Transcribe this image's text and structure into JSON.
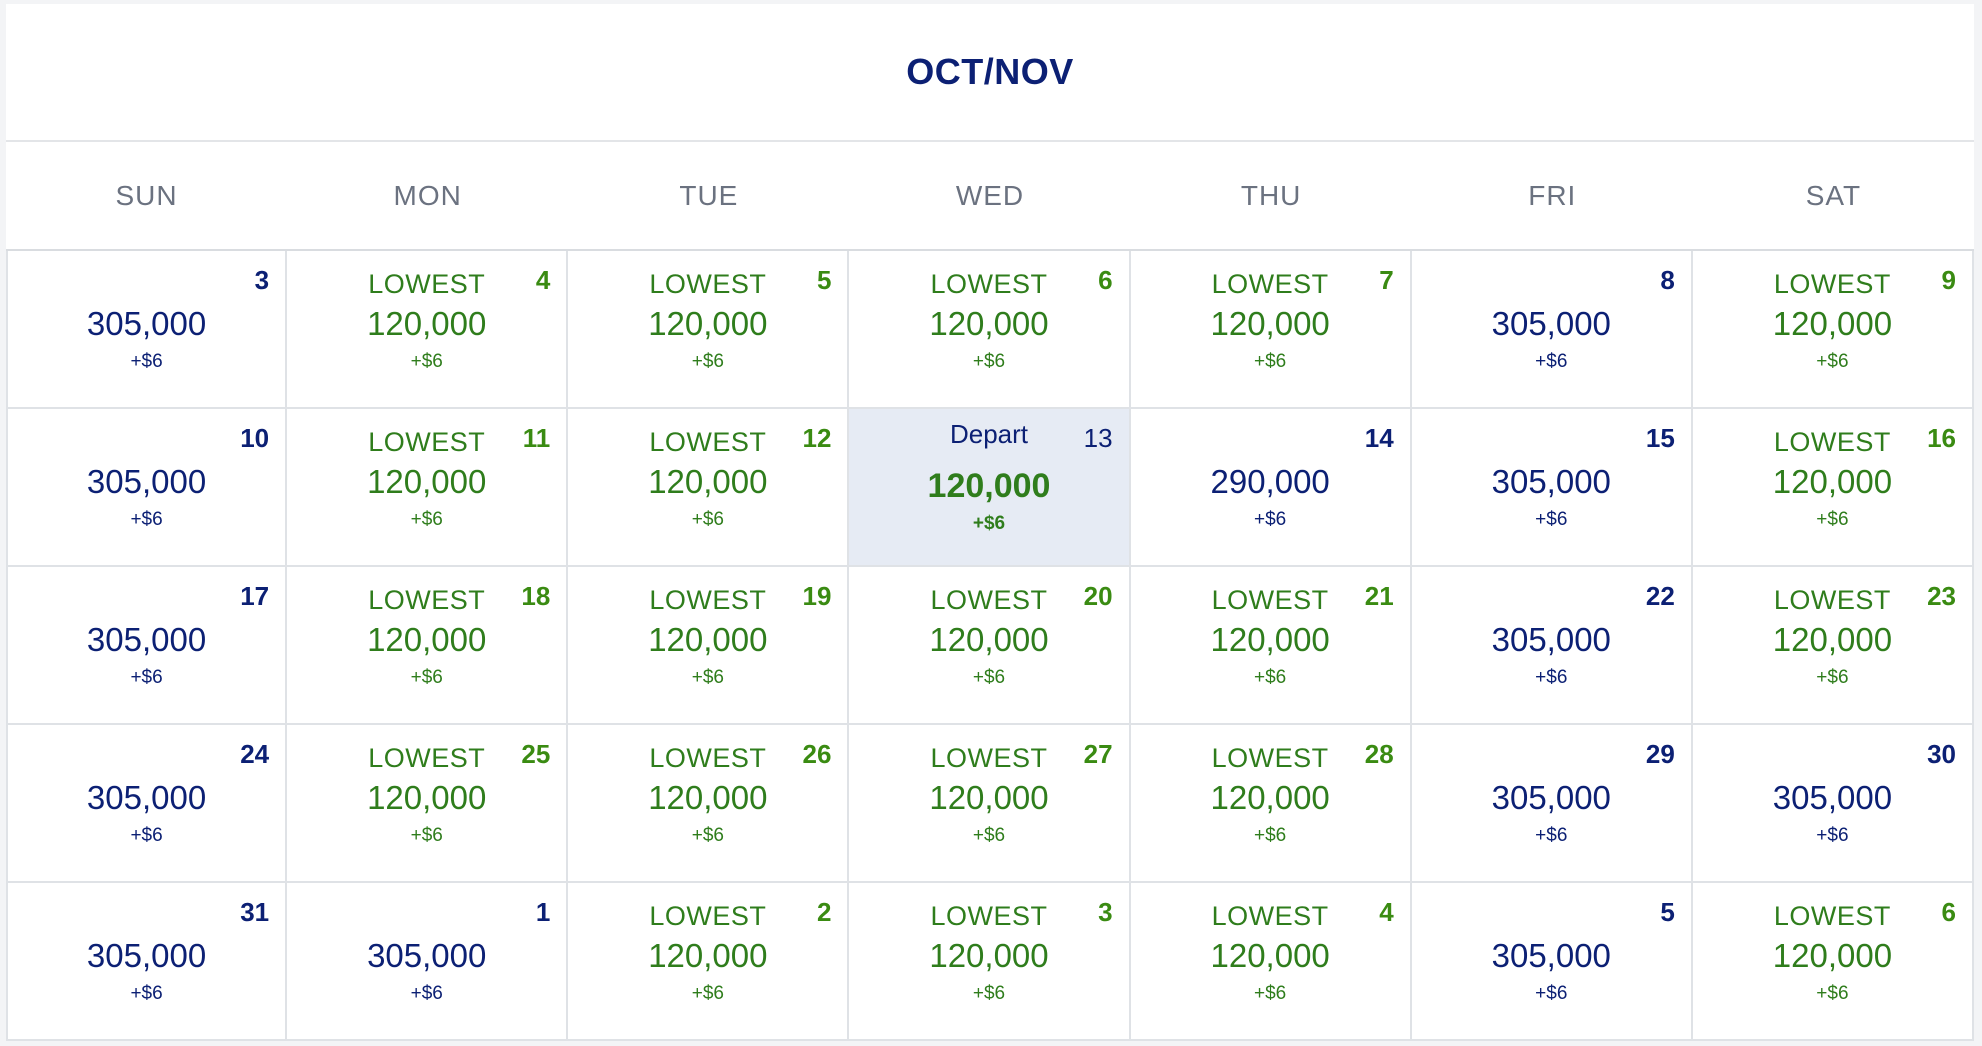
{
  "calendar": {
    "title": "OCT/NOV",
    "weekdays": [
      "SUN",
      "MON",
      "TUE",
      "WED",
      "THU",
      "FRI",
      "SAT"
    ],
    "colors": {
      "navy": "#0c2074",
      "green": "#2f7d1c",
      "selected_bg": "#e6ebf4"
    },
    "days": [
      {
        "day": "3",
        "tag": "",
        "price": "305,000",
        "fee": "+$6",
        "low": false
      },
      {
        "day": "4",
        "tag": "LOWEST",
        "price": "120,000",
        "fee": "+$6",
        "low": true
      },
      {
        "day": "5",
        "tag": "LOWEST",
        "price": "120,000",
        "fee": "+$6",
        "low": true
      },
      {
        "day": "6",
        "tag": "LOWEST",
        "price": "120,000",
        "fee": "+$6",
        "low": true
      },
      {
        "day": "7",
        "tag": "LOWEST",
        "price": "120,000",
        "fee": "+$6",
        "low": true
      },
      {
        "day": "8",
        "tag": "",
        "price": "305,000",
        "fee": "+$6",
        "low": false
      },
      {
        "day": "9",
        "tag": "LOWEST",
        "price": "120,000",
        "fee": "+$6",
        "low": true
      },
      {
        "day": "10",
        "tag": "",
        "price": "305,000",
        "fee": "+$6",
        "low": false
      },
      {
        "day": "11",
        "tag": "LOWEST",
        "price": "120,000",
        "fee": "+$6",
        "low": true
      },
      {
        "day": "12",
        "tag": "LOWEST",
        "price": "120,000",
        "fee": "+$6",
        "low": true
      },
      {
        "day": "13",
        "tag": "Depart",
        "price": "120,000",
        "fee": "+$6",
        "low": true,
        "selected": true
      },
      {
        "day": "14",
        "tag": "",
        "price": "290,000",
        "fee": "+$6",
        "low": false
      },
      {
        "day": "15",
        "tag": "",
        "price": "305,000",
        "fee": "+$6",
        "low": false
      },
      {
        "day": "16",
        "tag": "LOWEST",
        "price": "120,000",
        "fee": "+$6",
        "low": true
      },
      {
        "day": "17",
        "tag": "",
        "price": "305,000",
        "fee": "+$6",
        "low": false
      },
      {
        "day": "18",
        "tag": "LOWEST",
        "price": "120,000",
        "fee": "+$6",
        "low": true
      },
      {
        "day": "19",
        "tag": "LOWEST",
        "price": "120,000",
        "fee": "+$6",
        "low": true
      },
      {
        "day": "20",
        "tag": "LOWEST",
        "price": "120,000",
        "fee": "+$6",
        "low": true
      },
      {
        "day": "21",
        "tag": "LOWEST",
        "price": "120,000",
        "fee": "+$6",
        "low": true
      },
      {
        "day": "22",
        "tag": "",
        "price": "305,000",
        "fee": "+$6",
        "low": false
      },
      {
        "day": "23",
        "tag": "LOWEST",
        "price": "120,000",
        "fee": "+$6",
        "low": true
      },
      {
        "day": "24",
        "tag": "",
        "price": "305,000",
        "fee": "+$6",
        "low": false
      },
      {
        "day": "25",
        "tag": "LOWEST",
        "price": "120,000",
        "fee": "+$6",
        "low": true
      },
      {
        "day": "26",
        "tag": "LOWEST",
        "price": "120,000",
        "fee": "+$6",
        "low": true
      },
      {
        "day": "27",
        "tag": "LOWEST",
        "price": "120,000",
        "fee": "+$6",
        "low": true
      },
      {
        "day": "28",
        "tag": "LOWEST",
        "price": "120,000",
        "fee": "+$6",
        "low": true
      },
      {
        "day": "29",
        "tag": "",
        "price": "305,000",
        "fee": "+$6",
        "low": false
      },
      {
        "day": "30",
        "tag": "",
        "price": "305,000",
        "fee": "+$6",
        "low": false
      },
      {
        "day": "31",
        "tag": "",
        "price": "305,000",
        "fee": "+$6",
        "low": false
      },
      {
        "day": "1",
        "tag": "",
        "price": "305,000",
        "fee": "+$6",
        "low": false
      },
      {
        "day": "2",
        "tag": "LOWEST",
        "price": "120,000",
        "fee": "+$6",
        "low": true
      },
      {
        "day": "3",
        "tag": "LOWEST",
        "price": "120,000",
        "fee": "+$6",
        "low": true
      },
      {
        "day": "4",
        "tag": "LOWEST",
        "price": "120,000",
        "fee": "+$6",
        "low": true
      },
      {
        "day": "5",
        "tag": "",
        "price": "305,000",
        "fee": "+$6",
        "low": false
      },
      {
        "day": "6",
        "tag": "LOWEST",
        "price": "120,000",
        "fee": "+$6",
        "low": true
      }
    ]
  }
}
